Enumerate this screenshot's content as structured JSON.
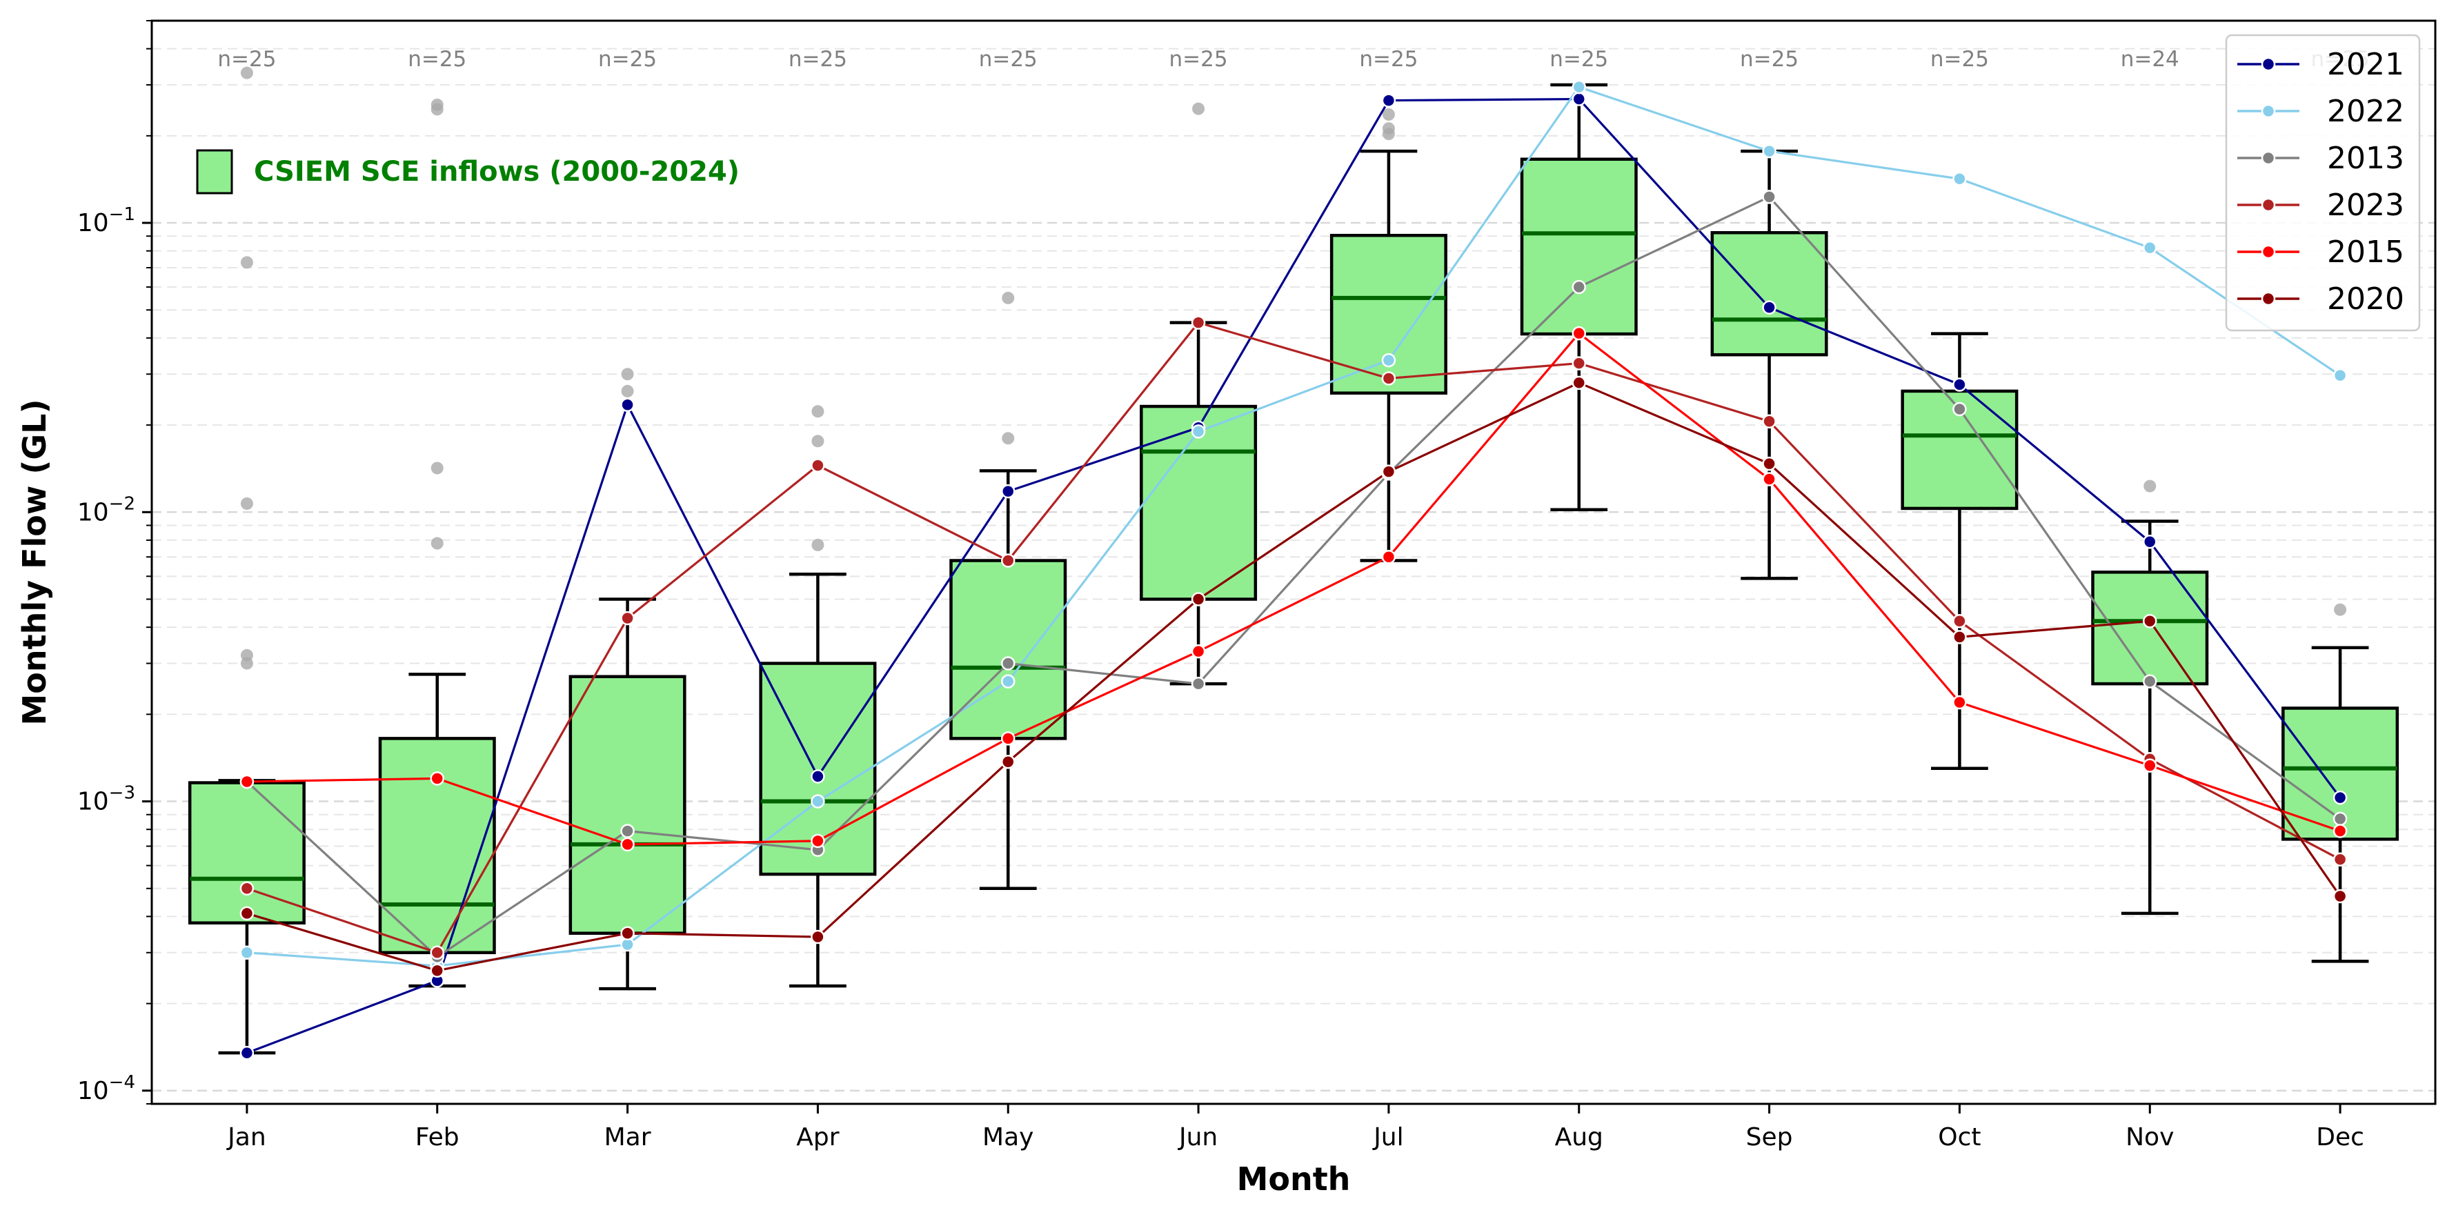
{
  "chart_data": {
    "type": "box",
    "xlabel": "Month",
    "ylabel": "Monthly Flow (GL)",
    "yscale": "log",
    "ylim": [
      9e-05,
      0.5
    ],
    "ytick_values": [
      0.0001,
      0.001,
      0.01,
      0.1
    ],
    "ytick_labels": [
      {
        "base": "10",
        "exp": "−4"
      },
      {
        "base": "10",
        "exp": "−3"
      },
      {
        "base": "10",
        "exp": "−2"
      },
      {
        "base": "10",
        "exp": "−1"
      }
    ],
    "grid": "y-dashed",
    "categories": [
      "Jan",
      "Feb",
      "Mar",
      "Apr",
      "May",
      "Jun",
      "Jul",
      "Aug",
      "Sep",
      "Oct",
      "Nov",
      "Dec"
    ],
    "n_labels": [
      "n=25",
      "n=25",
      "n=25",
      "n=25",
      "n=25",
      "n=25",
      "n=25",
      "n=25",
      "n=25",
      "n=25",
      "n=24",
      "n=25"
    ],
    "box_series_label": "CSIEM SCE inflows (2000-2024)",
    "box_color": "#90ee90",
    "median_color": "#006400",
    "boxes": [
      {
        "whislo": 0.000135,
        "q1": 0.00038,
        "med": 0.00054,
        "q3": 0.00116,
        "whishi": 0.00118,
        "fliers": [
          0.33,
          0.073,
          0.0107,
          0.0032,
          0.003
        ]
      },
      {
        "whislo": 0.00023,
        "q1": 0.0003,
        "med": 0.00044,
        "q3": 0.00165,
        "whishi": 0.00275,
        "fliers": [
          0.256,
          0.247,
          0.0142,
          0.0078
        ]
      },
      {
        "whislo": 0.000225,
        "q1": 0.00035,
        "med": 0.00071,
        "q3": 0.0027,
        "whishi": 0.005,
        "fliers": [
          0.03,
          0.0262
        ]
      },
      {
        "whislo": 0.00023,
        "q1": 0.00056,
        "med": 0.001,
        "q3": 0.003,
        "whishi": 0.0061,
        "fliers": [
          0.0223,
          0.0176,
          0.0077
        ]
      },
      {
        "whislo": 0.0005,
        "q1": 0.00165,
        "med": 0.0029,
        "q3": 0.0068,
        "whishi": 0.0139,
        "fliers": [
          0.055,
          0.018
        ]
      },
      {
        "whislo": 0.00255,
        "q1": 0.005,
        "med": 0.0162,
        "q3": 0.0232,
        "whishi": 0.0452,
        "fliers": [
          0.248
        ]
      },
      {
        "whislo": 0.0068,
        "q1": 0.0258,
        "med": 0.055,
        "q3": 0.0905,
        "whishi": 0.177,
        "fliers": [
          0.237,
          0.212,
          0.203
        ]
      },
      {
        "whislo": 0.0102,
        "q1": 0.0413,
        "med": 0.092,
        "q3": 0.166,
        "whishi": 0.3,
        "fliers": []
      },
      {
        "whislo": 0.0059,
        "q1": 0.035,
        "med": 0.0463,
        "q3": 0.0925,
        "whishi": 0.177,
        "fliers": []
      },
      {
        "whislo": 0.0013,
        "q1": 0.0103,
        "med": 0.0184,
        "q3": 0.0262,
        "whishi": 0.0414,
        "fliers": []
      },
      {
        "whislo": 0.00041,
        "q1": 0.00255,
        "med": 0.0042,
        "q3": 0.0062,
        "whishi": 0.0093,
        "fliers": [
          0.0123
        ]
      },
      {
        "whislo": 0.00028,
        "q1": 0.00074,
        "med": 0.0013,
        "q3": 0.0021,
        "whishi": 0.0034,
        "fliers": [
          0.0046
        ]
      }
    ],
    "series": [
      {
        "name": "2021",
        "color": "#00008b",
        "values": [
          0.000135,
          0.00024,
          0.0235,
          0.00122,
          0.0118,
          0.0196,
          0.265,
          0.268,
          0.051,
          0.0276,
          0.0079,
          0.00103
        ]
      },
      {
        "name": "2022",
        "color": "#87ceeb",
        "values": [
          0.0003,
          0.00027,
          0.00032,
          0.001,
          0.0026,
          0.019,
          0.0335,
          0.295,
          0.177,
          0.142,
          0.082,
          0.0297
        ]
      },
      {
        "name": "2013",
        "color": "#808080",
        "values": [
          0.00117,
          0.00029,
          0.00079,
          0.00068,
          0.003,
          0.00255,
          0.0136,
          0.06,
          0.123,
          0.0227,
          0.0026,
          0.00087
        ]
      },
      {
        "name": "2023",
        "color": "#b22222",
        "values": [
          0.0005,
          0.0003,
          0.0043,
          0.0145,
          0.0068,
          0.0452,
          0.029,
          0.0327,
          0.0206,
          0.0042,
          0.0014,
          0.00063
        ]
      },
      {
        "name": "2015",
        "color": "#ff0000",
        "values": [
          0.00117,
          0.0012,
          0.00071,
          0.00073,
          0.00165,
          0.0033,
          0.007,
          0.0415,
          0.013,
          0.0022,
          0.00133,
          0.00079
        ]
      },
      {
        "name": "2020",
        "color": "#8b0000",
        "values": [
          0.00041,
          0.00026,
          0.00035,
          0.00034,
          0.00137,
          0.005,
          0.0138,
          0.028,
          0.0147,
          0.0037,
          0.0042,
          0.00047
        ]
      }
    ],
    "legend_position": "top-right"
  }
}
